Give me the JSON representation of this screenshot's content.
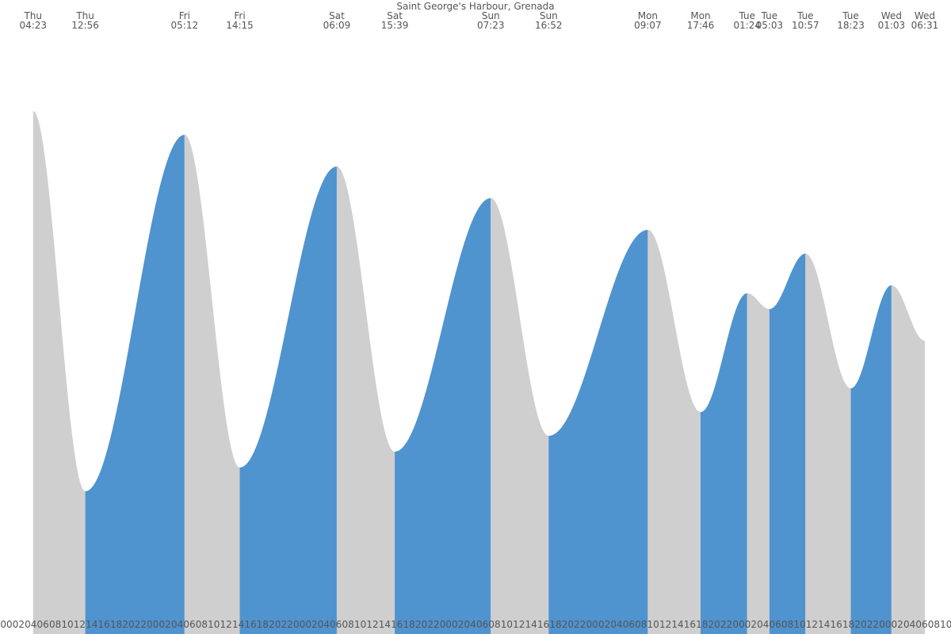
{
  "chart_data": {
    "type": "tide",
    "title": "Saint George's Harbour, Grenada",
    "events": [
      {
        "day": "Thu",
        "time": "04:23",
        "height": 0.66
      },
      {
        "day": "Thu",
        "time": "12:56",
        "height": 0.18
      },
      {
        "day": "Fri",
        "time": "05:12",
        "height": 0.63
      },
      {
        "day": "Fri",
        "time": "14:15",
        "height": 0.21
      },
      {
        "day": "Sat",
        "time": "06:09",
        "height": 0.59
      },
      {
        "day": "Sat",
        "time": "15:39",
        "height": 0.23
      },
      {
        "day": "Sun",
        "time": "07:23",
        "height": 0.55
      },
      {
        "day": "Sun",
        "time": "16:52",
        "height": 0.25
      },
      {
        "day": "Mon",
        "time": "09:07",
        "height": 0.51
      },
      {
        "day": "Mon",
        "time": "17:46",
        "height": 0.28
      },
      {
        "day": "Tue",
        "time": "01:24",
        "height": 0.43
      },
      {
        "day": "Tue",
        "time": "05:03",
        "height": 0.41
      },
      {
        "day": "Tue",
        "time": "10:57",
        "height": 0.48
      },
      {
        "day": "Tue",
        "time": "18:23",
        "height": 0.31
      },
      {
        "day": "Wed",
        "time": "01:03",
        "height": 0.44
      },
      {
        "day": "Wed",
        "time": "06:31",
        "height": 0.37
      }
    ],
    "ylim": [
      0,
      0.8
    ],
    "rising_color": "#4f93cf",
    "falling_color": "#cfcfcf",
    "hour_labels": [
      "00",
      "02",
      "04",
      "06",
      "08",
      "10",
      "12",
      "14",
      "16",
      "18",
      "20",
      "22",
      "00",
      "02",
      "04",
      "06",
      "08",
      "10",
      "12",
      "14",
      "16",
      "18",
      "20",
      "22",
      "00",
      "02",
      "04",
      "06",
      "08",
      "10",
      "12",
      "14",
      "16",
      "18",
      "20",
      "22",
      "00",
      "02",
      "04",
      "06",
      "08",
      "10",
      "12",
      "14",
      "16",
      "18",
      "20",
      "22",
      "00",
      "02",
      "04",
      "06",
      "08",
      "10",
      "12",
      "14",
      "16",
      "18",
      "20",
      "22",
      "00",
      "02",
      "04",
      "06",
      "08",
      "10",
      "12",
      "14",
      "16",
      "18",
      "20",
      "22",
      "00",
      "02",
      "04",
      "06",
      "08",
      "10"
    ]
  }
}
